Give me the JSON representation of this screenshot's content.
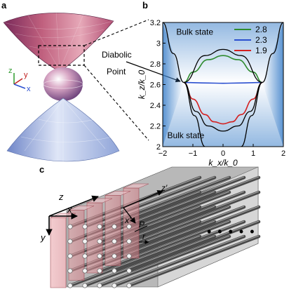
{
  "panels": {
    "a": {
      "label": "a",
      "axes": {
        "z": "z",
        "y": "y",
        "x": "x"
      },
      "annotation": {
        "line1": "Diabolic",
        "line2": "Point"
      }
    },
    "b": {
      "label": "b"
    },
    "c": {
      "label": "c",
      "axes": {
        "z": "z",
        "x": "x",
        "y": "y",
        "z2": "z′",
        "x2": "x′"
      },
      "period": "P",
      "radius": "r",
      "ellipsis": "•  •  •  •  •"
    }
  },
  "chart_data": {
    "type": "line",
    "xlabel": "k_x/k_0",
    "ylabel": "k_z/k_0",
    "xlim": [
      -2,
      2
    ],
    "ylim": [
      2.0,
      3.2
    ],
    "xticks": [
      "−2",
      "−1",
      "0",
      "1",
      "2"
    ],
    "yticks": [
      "2",
      "2.2",
      "2.4",
      "2.6",
      "2.8",
      "3",
      "3.2"
    ],
    "region_labels": [
      "Bulk state",
      "Bulk state"
    ],
    "legend_position": "top-right",
    "series": [
      {
        "name": "2.8",
        "color": "#2e8b2e",
        "x": [
          -1.3,
          -1.0,
          -0.5,
          0,
          0.5,
          1.0,
          1.3
        ],
        "y": [
          2.62,
          2.72,
          2.84,
          2.88,
          2.84,
          2.72,
          2.62
        ]
      },
      {
        "name": "2.3",
        "color": "#2a4fd0",
        "x": [
          -1.3,
          -0.5,
          0,
          0.5,
          1.3
        ],
        "y": [
          2.62,
          2.615,
          2.612,
          2.615,
          2.62
        ]
      },
      {
        "name": "1.9",
        "color": "#d42020",
        "x": [
          -1.3,
          -1.0,
          -0.6,
          -0.3,
          0,
          0.3,
          0.6,
          1.0,
          1.3
        ],
        "y": [
          2.62,
          2.46,
          2.31,
          2.24,
          2.22,
          2.24,
          2.31,
          2.46,
          2.62
        ]
      },
      {
        "name": "",
        "color": "#000000",
        "x": [
          -1.3,
          -0.6,
          0,
          0.6,
          1.3
        ],
        "y": [
          2.62,
          2.88,
          2.94,
          2.88,
          2.62
        ]
      },
      {
        "name": "",
        "color": "#000000",
        "x": [
          -1.3,
          -0.9,
          -0.5,
          0,
          0.5,
          0.9,
          1.3
        ],
        "y": [
          2.62,
          2.34,
          2.2,
          2.15,
          2.2,
          2.34,
          2.62
        ]
      },
      {
        "name": "",
        "color": "#000000",
        "x": [
          -2,
          -1.65,
          -1.3,
          -0.95,
          -0.6
        ],
        "y": [
          3.2,
          2.9,
          2.62,
          2.3,
          2.0
        ]
      },
      {
        "name": "",
        "color": "#000000",
        "x": [
          0.6,
          0.95,
          1.3,
          1.65,
          2
        ],
        "y": [
          2.0,
          2.3,
          2.62,
          2.9,
          3.2
        ]
      }
    ]
  }
}
